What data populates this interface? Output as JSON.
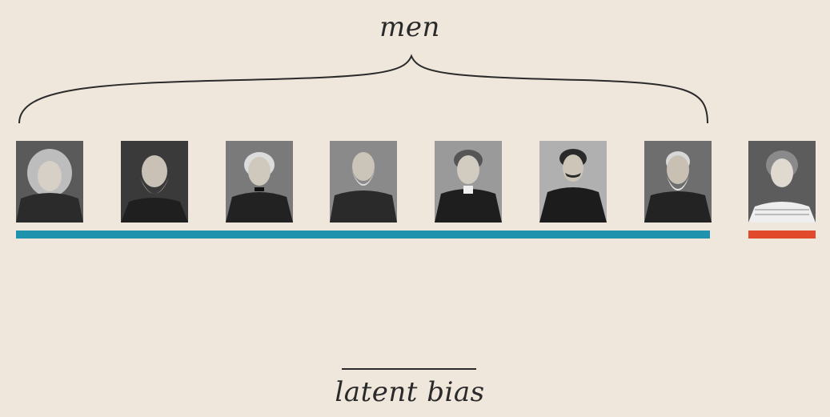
{
  "labels": {
    "top": "men",
    "bottom": "latent bias"
  },
  "colors": {
    "background": "#efe7db",
    "men_bar": "#1f93ad",
    "women_bar": "#e14a2a",
    "text": "#2a2a2a"
  },
  "portraits": [
    {
      "group": "men",
      "icon": "portrait-long-hair-icon"
    },
    {
      "group": "men",
      "icon": "portrait-white-beard-icon"
    },
    {
      "group": "men",
      "icon": "portrait-bowtie-icon"
    },
    {
      "group": "men",
      "icon": "portrait-sideburns-icon"
    },
    {
      "group": "men",
      "icon": "portrait-curly-hair-icon"
    },
    {
      "group": "men",
      "icon": "portrait-mustache-icon"
    },
    {
      "group": "men",
      "icon": "portrait-grey-beard-icon"
    },
    {
      "group": "women",
      "icon": "portrait-woman-icon"
    }
  ]
}
